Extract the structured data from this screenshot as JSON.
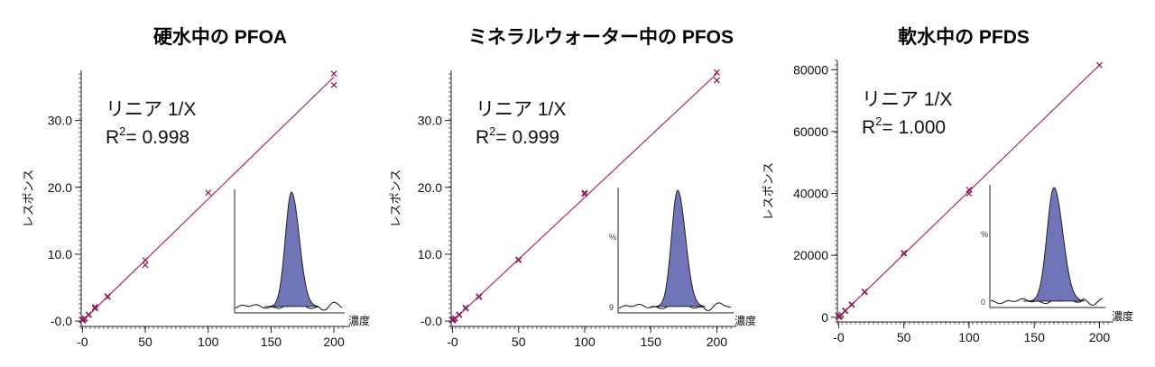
{
  "chart_data": [
    {
      "type": "scatter",
      "title": "硬水中の PFOA",
      "ylabel": "レスポンス",
      "xunit": "濃度",
      "xlim": [
        -1,
        210
      ],
      "ylim": [
        -0.8,
        37.5
      ],
      "xticks": [
        0,
        50,
        100,
        150,
        200
      ],
      "xtick_labels": [
        "-0",
        "50",
        "100",
        "150",
        "200"
      ],
      "yticks": [
        0,
        10,
        20,
        30
      ],
      "ytick_labels": [
        "-0.0",
        "10.0",
        "20.0",
        "30.0"
      ],
      "fit": {
        "label": "リニア 1/X",
        "r2_prefix": "R",
        "r2_exp": "2",
        "r2_text": "= 0.998",
        "x": [
          0,
          200
        ],
        "y": [
          0,
          36.5
        ]
      },
      "points": {
        "x": [
          0,
          0,
          0.5,
          1,
          2,
          5,
          5,
          10,
          10,
          20,
          20,
          50,
          50,
          100,
          200,
          200
        ],
        "y": [
          0.1,
          0.2,
          0.15,
          0.3,
          0.4,
          0.9,
          1.0,
          1.9,
          2.1,
          3.6,
          3.7,
          9.1,
          8.4,
          19.2,
          37.0,
          35.3
        ]
      },
      "inset": {
        "percent_label": "",
        "zero_label": ""
      }
    },
    {
      "type": "scatter",
      "title": "ミネラルウォーター中の PFOS",
      "ylabel": "レスポンス",
      "xunit": "濃度",
      "xlim": [
        -1,
        212
      ],
      "ylim": [
        -0.8,
        37.5
      ],
      "xticks": [
        0,
        50,
        100,
        150,
        200
      ],
      "xtick_labels": [
        "-0",
        "50",
        "100",
        "150",
        "200"
      ],
      "yticks": [
        0,
        10,
        20,
        30
      ],
      "ytick_labels": [
        "-0.0",
        "10.0",
        "20.0",
        "30.0"
      ],
      "fit": {
        "label": "リニア 1/X",
        "r2_prefix": "R",
        "r2_exp": "2",
        "r2_text": "= 0.999",
        "x": [
          0,
          200
        ],
        "y": [
          0,
          37.0
        ]
      },
      "points": {
        "x": [
          0,
          0,
          0.5,
          1,
          2,
          5,
          5,
          10,
          10,
          20,
          20,
          50,
          50,
          100,
          100,
          200,
          200
        ],
        "y": [
          0.1,
          0.2,
          0.15,
          0.3,
          0.4,
          0.9,
          1.0,
          1.9,
          2.0,
          3.6,
          3.7,
          9.2,
          9.1,
          19.2,
          19.0,
          37.2,
          36.0
        ]
      },
      "inset": {
        "percent_label": "%",
        "zero_label": "9"
      }
    },
    {
      "type": "scatter",
      "title": "軟水中の PFDS",
      "ylabel": "レスポンス",
      "xunit": "濃度",
      "xlim": [
        -1,
        208
      ],
      "ylim": [
        -1500,
        83000
      ],
      "xticks": [
        0,
        50,
        100,
        150,
        200
      ],
      "xtick_labels": [
        "-0",
        "50",
        "100",
        "150",
        "200"
      ],
      "yticks": [
        0,
        20000,
        40000,
        60000,
        80000
      ],
      "ytick_labels": [
        "0",
        "20000",
        "40000",
        "60000",
        "80000"
      ],
      "fit": {
        "label": "リニア 1/X",
        "r2_prefix": "R",
        "r2_exp": "2",
        "r2_text": "= 1.000",
        "x": [
          0,
          200
        ],
        "y": [
          0,
          81500
        ]
      },
      "points": {
        "x": [
          0,
          0,
          0.5,
          1,
          2,
          5,
          5,
          10,
          10,
          20,
          20,
          50,
          50,
          100,
          100,
          200
        ],
        "y": [
          100,
          300,
          200,
          400,
          800,
          2000,
          2200,
          4000,
          4200,
          8100,
          8300,
          20600,
          20800,
          41200,
          40000,
          81500
        ]
      },
      "inset": {
        "percent_label": "%",
        "zero_label": "0"
      }
    }
  ],
  "colors": {
    "fit_line": "#b0286b",
    "marker": "#8f1d5c",
    "peak_fill": "#7075b8",
    "axis": "#222222"
  }
}
